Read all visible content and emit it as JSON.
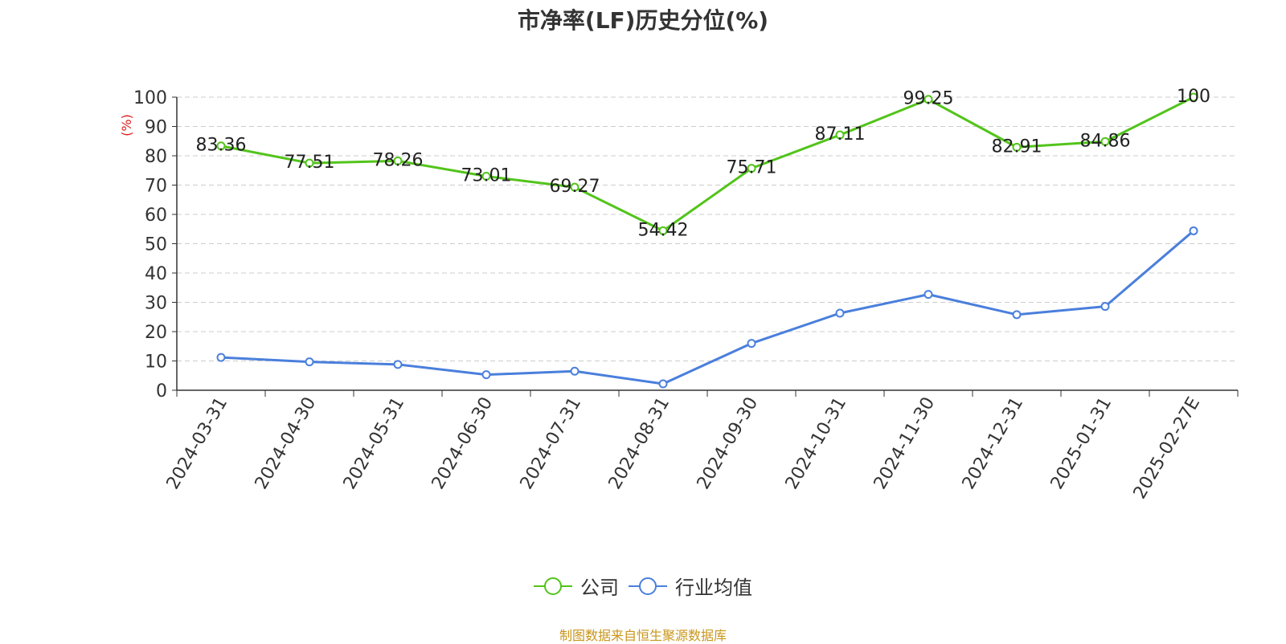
{
  "chart_data": {
    "type": "line",
    "title": "市净率(LF)历史分位(%)",
    "ylabel": "(%)",
    "ylim": [
      0,
      100
    ],
    "yticks": [
      0,
      10,
      20,
      30,
      40,
      50,
      60,
      70,
      80,
      90,
      100
    ],
    "grid": true,
    "legend_position": "bottom-center",
    "categories": [
      "2024-03-31",
      "2024-04-30",
      "2024-05-31",
      "2024-06-30",
      "2024-07-31",
      "2024-08-31",
      "2024-09-30",
      "2024-10-31",
      "2024-11-30",
      "2024-12-31",
      "2025-01-31",
      "2025-02-27E"
    ],
    "series": [
      {
        "name": "公司",
        "color": "#52c41a",
        "show_labels": true,
        "values": [
          83.36,
          77.51,
          78.26,
          73.01,
          69.27,
          54.42,
          75.71,
          87.11,
          99.25,
          82.91,
          84.86,
          100
        ]
      },
      {
        "name": "行业均值",
        "color": "#4a7fdc",
        "show_labels": false,
        "values": [
          11.2,
          9.7,
          8.8,
          5.3,
          6.5,
          2.2,
          16.0,
          26.3,
          32.7,
          25.8,
          28.6,
          54.4
        ]
      }
    ]
  },
  "footer": {
    "source": "制图数据来自恒生聚源数据库"
  }
}
